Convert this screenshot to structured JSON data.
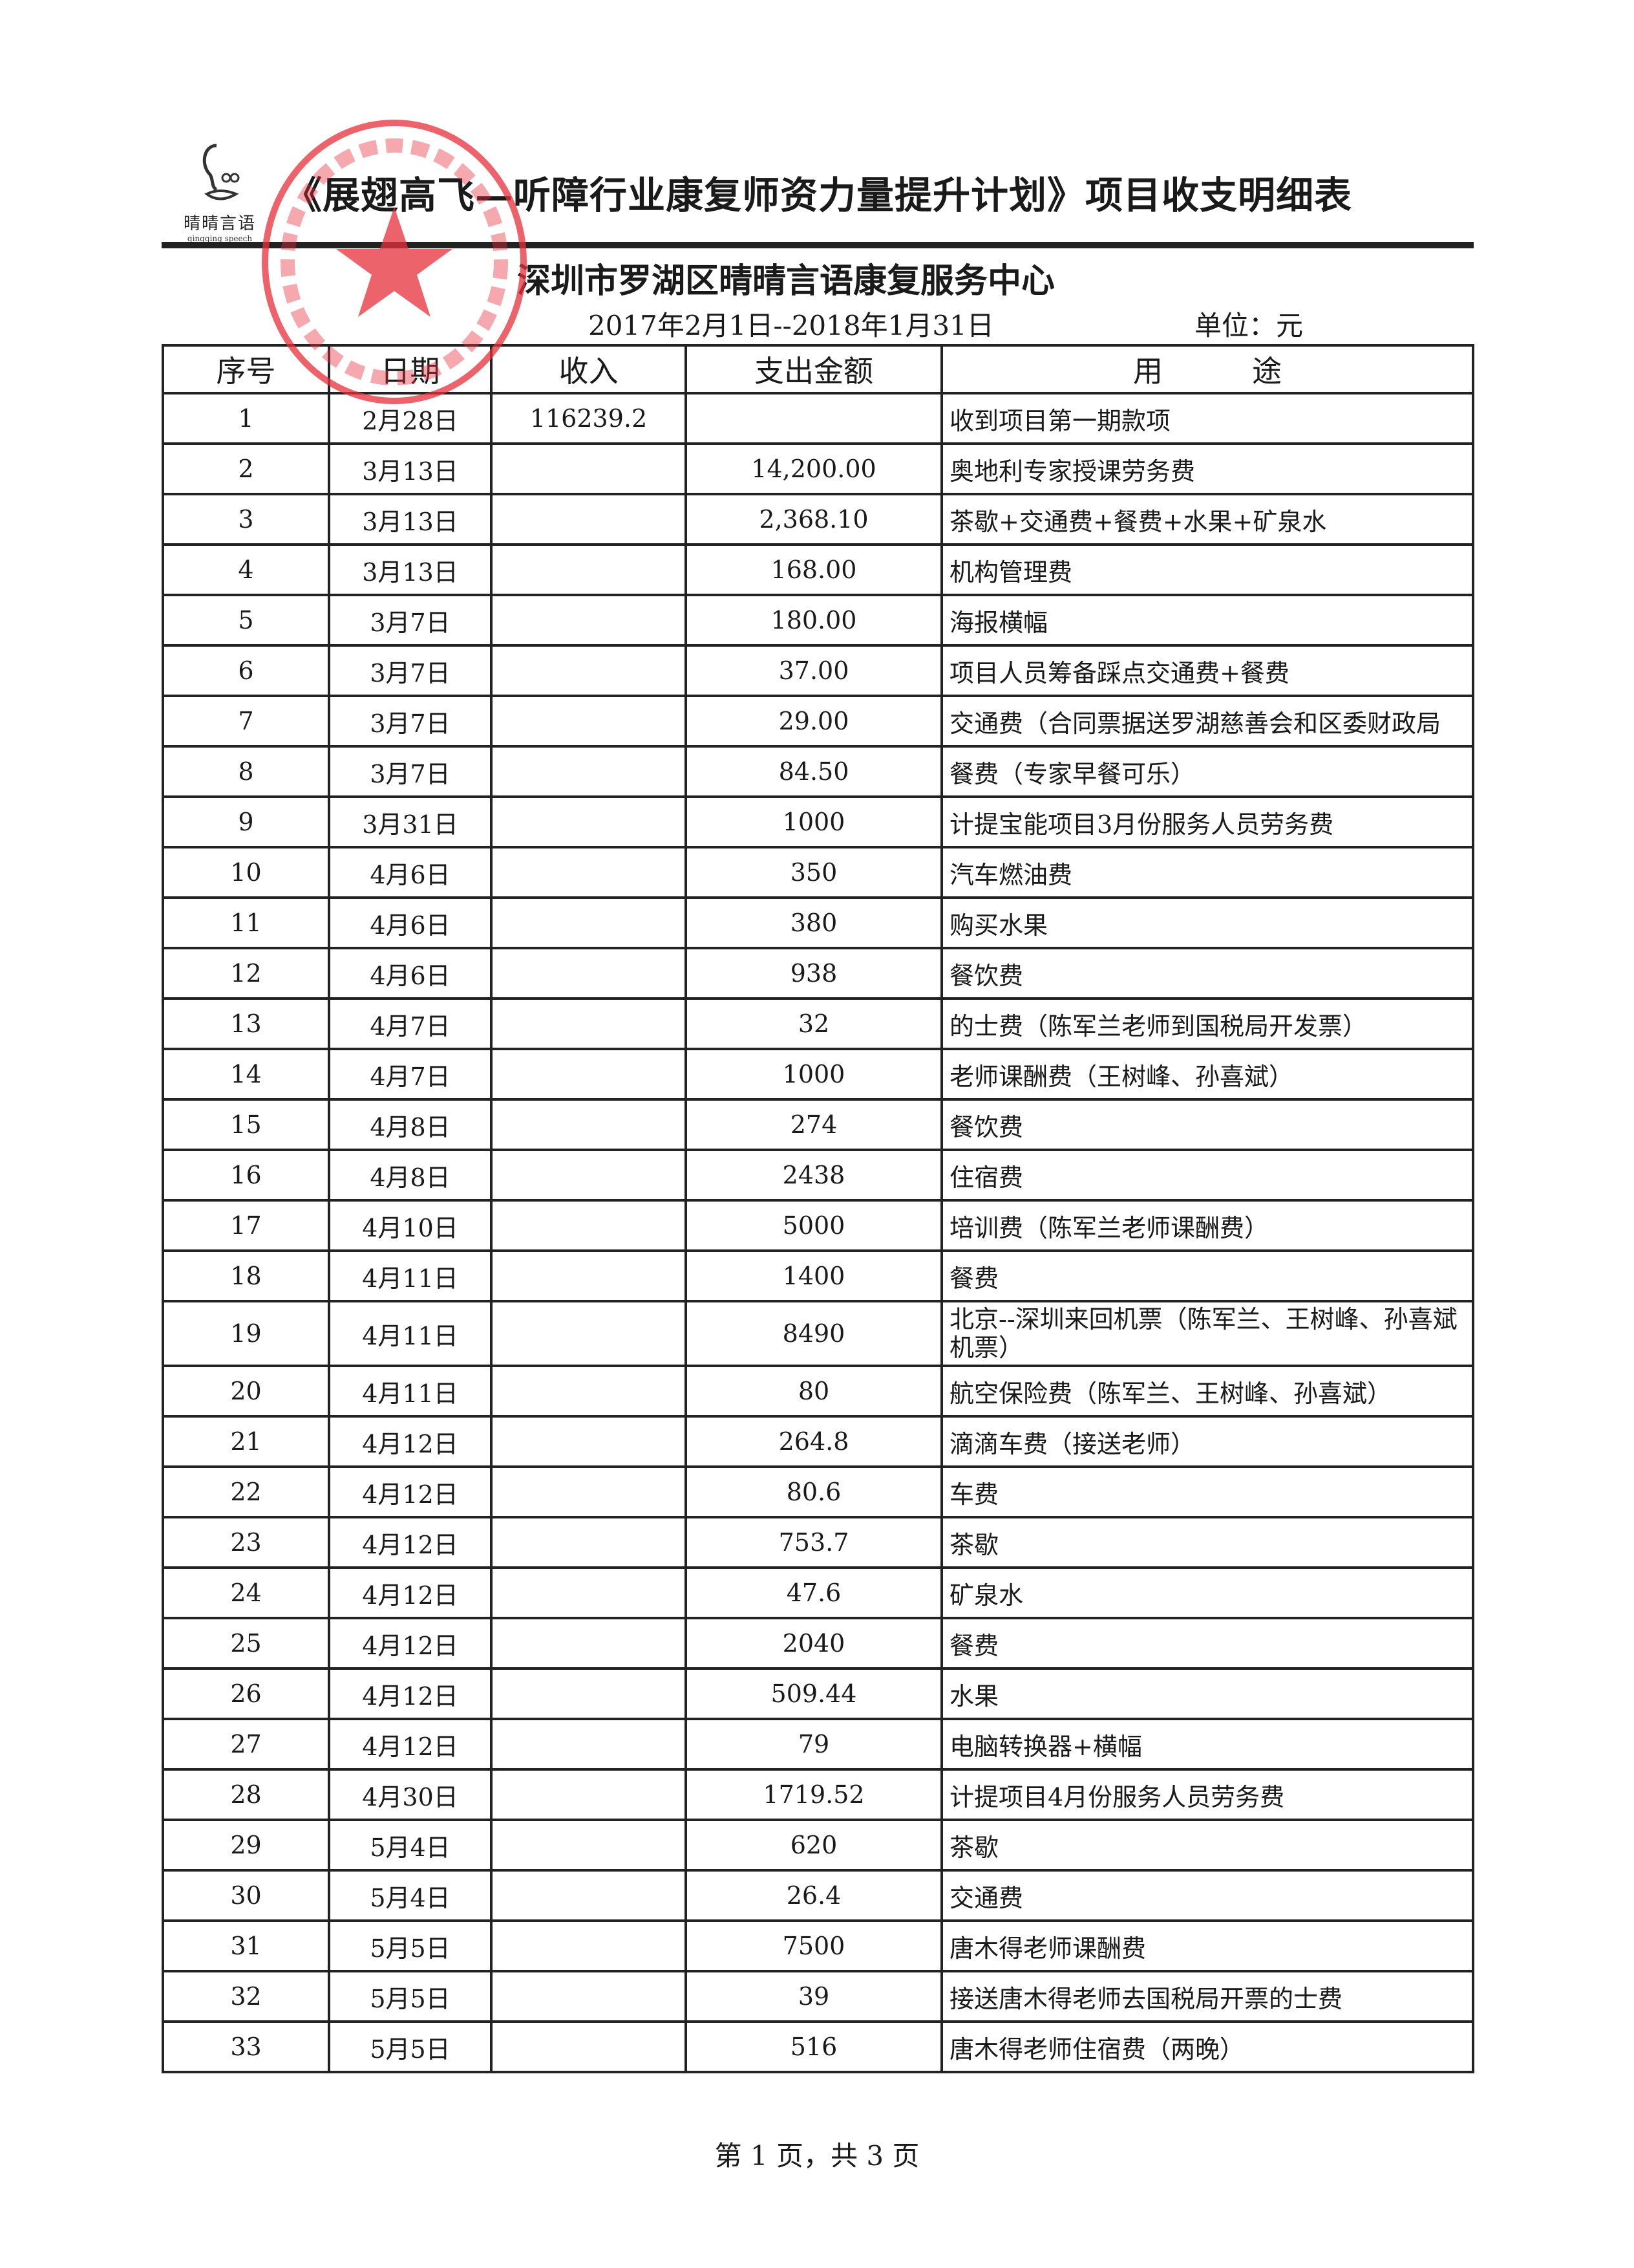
{
  "logo": {
    "cn": "晴晴言语",
    "en": "qingqing speech"
  },
  "title": "《展翅高飞—听障行业康复师资力量提升计划》项目收支明细表",
  "organization": "深圳市罗湖区晴晴言语康复服务中心",
  "period": "2017年2月1日--2018年1月31日",
  "unit": "单位：元",
  "stamp": {
    "text": "深圳市罗湖区晴晴言语康复服务中心",
    "color": "#e8303a"
  },
  "columns": [
    "序号",
    "日期",
    "收入",
    "支出金额",
    "用　　　途"
  ],
  "rows": [
    [
      "1",
      "2月28日",
      "116239.2",
      "",
      "收到项目第一期款项"
    ],
    [
      "2",
      "3月13日",
      "",
      "14,200.00",
      "奥地利专家授课劳务费"
    ],
    [
      "3",
      "3月13日",
      "",
      "2,368.10",
      "茶歇+交通费+餐费+水果+矿泉水"
    ],
    [
      "4",
      "3月13日",
      "",
      "168.00",
      "机构管理费"
    ],
    [
      "5",
      "3月7日",
      "",
      "180.00",
      "海报横幅"
    ],
    [
      "6",
      "3月7日",
      "",
      "37.00",
      "项目人员筹备踩点交通费+餐费"
    ],
    [
      "7",
      "3月7日",
      "",
      "29.00",
      "交通费（合同票据送罗湖慈善会和区委财政局"
    ],
    [
      "8",
      "3月7日",
      "",
      "84.50",
      "餐费（专家早餐可乐）"
    ],
    [
      "9",
      "3月31日",
      "",
      "1000",
      "计提宝能项目3月份服务人员劳务费"
    ],
    [
      "10",
      "4月6日",
      "",
      "350",
      "汽车燃油费"
    ],
    [
      "11",
      "4月6日",
      "",
      "380",
      "购买水果"
    ],
    [
      "12",
      "4月6日",
      "",
      "938",
      "餐饮费"
    ],
    [
      "13",
      "4月7日",
      "",
      "32",
      "的士费（陈军兰老师到国税局开发票）"
    ],
    [
      "14",
      "4月7日",
      "",
      "1000",
      "老师课酬费（王树峰、孙喜斌）"
    ],
    [
      "15",
      "4月8日",
      "",
      "274",
      "餐饮费"
    ],
    [
      "16",
      "4月8日",
      "",
      "2438",
      "住宿费"
    ],
    [
      "17",
      "4月10日",
      "",
      "5000",
      "培训费（陈军兰老师课酬费）"
    ],
    [
      "18",
      "4月11日",
      "",
      "1400",
      "餐费"
    ],
    [
      "19",
      "4月11日",
      "",
      "8490",
      "北京--深圳来回机票（陈军兰、王树峰、孙喜斌机票）"
    ],
    [
      "20",
      "4月11日",
      "",
      "80",
      "航空保险费（陈军兰、王树峰、孙喜斌）"
    ],
    [
      "21",
      "4月12日",
      "",
      "264.8",
      "滴滴车费（接送老师）"
    ],
    [
      "22",
      "4月12日",
      "",
      "80.6",
      "车费"
    ],
    [
      "23",
      "4月12日",
      "",
      "753.7",
      "茶歇"
    ],
    [
      "24",
      "4月12日",
      "",
      "47.6",
      "矿泉水"
    ],
    [
      "25",
      "4月12日",
      "",
      "2040",
      "餐费"
    ],
    [
      "26",
      "4月12日",
      "",
      "509.44",
      "水果"
    ],
    [
      "27",
      "4月12日",
      "",
      "79",
      "电脑转换器+横幅"
    ],
    [
      "28",
      "4月30日",
      "",
      "1719.52",
      "计提项目4月份服务人员劳务费"
    ],
    [
      "29",
      "5月4日",
      "",
      "620",
      "茶歇"
    ],
    [
      "30",
      "5月4日",
      "",
      "26.4",
      "交通费"
    ],
    [
      "31",
      "5月5日",
      "",
      "7500",
      "唐木得老师课酬费"
    ],
    [
      "32",
      "5月5日",
      "",
      "39",
      "接送唐木得老师去国税局开票的士费"
    ],
    [
      "33",
      "5月5日",
      "",
      "516",
      "唐木得老师住宿费（两晚）"
    ]
  ],
  "footer": "第 1 页，共 3 页"
}
